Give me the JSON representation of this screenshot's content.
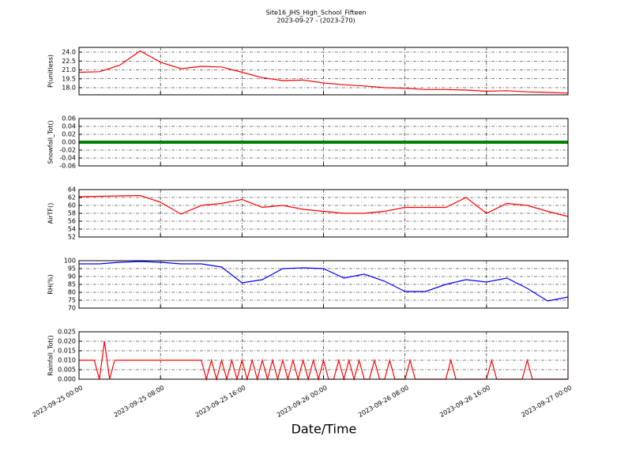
{
  "chart_data": [
    {
      "type": "line",
      "title": "Site16_JHS_High_School_Fifteen",
      "subtitle": "2023-09-27 - (2023-270)",
      "ylabel": "P(unitless)",
      "x": [
        "2023-09-25 00:00",
        "2023-09-25 02:00",
        "2023-09-25 04:00",
        "2023-09-25 06:00",
        "2023-09-25 08:00",
        "2023-09-25 10:00",
        "2023-09-25 12:00",
        "2023-09-25 14:00",
        "2023-09-25 16:00",
        "2023-09-25 18:00",
        "2023-09-25 20:00",
        "2023-09-25 22:00",
        "2023-09-26 00:00",
        "2023-09-26 02:00",
        "2023-09-26 04:00",
        "2023-09-26 06:00",
        "2023-09-26 08:00",
        "2023-09-26 10:00",
        "2023-09-26 12:00",
        "2023-09-26 14:00",
        "2023-09-26 16:00",
        "2023-09-26 18:00",
        "2023-09-26 20:00",
        "2023-09-26 22:00",
        "2023-09-27 00:00"
      ],
      "series": [
        {
          "color": "#ff0000",
          "values": [
            20.6,
            20.7,
            21.8,
            24.2,
            22.3,
            21.2,
            21.6,
            21.5,
            20.6,
            19.7,
            19.2,
            19.3,
            18.8,
            18.5,
            18.3,
            18.0,
            17.9,
            17.7,
            17.7,
            17.6,
            17.4,
            17.5,
            17.3,
            17.2,
            17.1
          ]
        }
      ],
      "xlim": [
        "2023-09-25 00:00",
        "2023-09-27 00:00"
      ],
      "xticks": [
        "2023-09-25 00:00",
        "2023-09-25 08:00",
        "2023-09-25 16:00",
        "2023-09-26 00:00",
        "2023-09-26 08:00",
        "2023-09-26 16:00",
        "2023-09-27 00:00"
      ],
      "ylim": [
        16.8,
        24.8
      ],
      "yticks": [
        {
          "value": 18,
          "label": "18.0"
        },
        19.5,
        {
          "value": 21,
          "label": "21.0"
        },
        22.5,
        {
          "value": 24,
          "label": "24.0"
        }
      ],
      "grid": true
    },
    {
      "type": "line",
      "ylabel": "Snowfall_Tot()",
      "x": [
        "2023-09-25 00:00",
        "2023-09-25 02:00",
        "2023-09-25 04:00",
        "2023-09-25 06:00",
        "2023-09-25 08:00",
        "2023-09-25 10:00",
        "2023-09-25 12:00",
        "2023-09-25 14:00",
        "2023-09-25 16:00",
        "2023-09-25 18:00",
        "2023-09-25 20:00",
        "2023-09-25 22:00",
        "2023-09-26 00:00",
        "2023-09-26 02:00",
        "2023-09-26 04:00",
        "2023-09-26 06:00",
        "2023-09-26 08:00",
        "2023-09-26 10:00",
        "2023-09-26 12:00",
        "2023-09-26 14:00",
        "2023-09-26 16:00",
        "2023-09-26 18:00",
        "2023-09-26 20:00",
        "2023-09-26 22:00",
        "2023-09-27 00:00"
      ],
      "series": [
        {
          "color": "#008000",
          "values": [
            0,
            0,
            0,
            0,
            0,
            0,
            0,
            0,
            0,
            0,
            0,
            0,
            0,
            0,
            0,
            0,
            0,
            0,
            0,
            0,
            0,
            0,
            0,
            0,
            0
          ]
        }
      ],
      "xlim": [
        "2023-09-25 00:00",
        "2023-09-27 00:00"
      ],
      "xticks": [
        "2023-09-25 00:00",
        "2023-09-25 08:00",
        "2023-09-25 16:00",
        "2023-09-26 00:00",
        "2023-09-26 08:00",
        "2023-09-26 16:00",
        "2023-09-27 00:00"
      ],
      "ylim": [
        -0.06,
        0.06
      ],
      "yticks": [
        -0.06,
        -0.04,
        -0.02,
        {
          "value": 0,
          "label": "0.00"
        },
        0.02,
        0.04,
        0.06
      ],
      "grid": true
    },
    {
      "type": "line",
      "ylabel": "AirTF()",
      "x": [
        "2023-09-25 00:00",
        "2023-09-25 02:00",
        "2023-09-25 04:00",
        "2023-09-25 06:00",
        "2023-09-25 08:00",
        "2023-09-25 10:00",
        "2023-09-25 12:00",
        "2023-09-25 14:00",
        "2023-09-25 16:00",
        "2023-09-25 18:00",
        "2023-09-25 20:00",
        "2023-09-25 22:00",
        "2023-09-26 00:00",
        "2023-09-26 02:00",
        "2023-09-26 04:00",
        "2023-09-26 06:00",
        "2023-09-26 08:00",
        "2023-09-26 10:00",
        "2023-09-26 12:00",
        "2023-09-26 14:00",
        "2023-09-26 16:00",
        "2023-09-26 18:00",
        "2023-09-26 20:00",
        "2023-09-26 22:00",
        "2023-09-27 00:00"
      ],
      "series": [
        {
          "color": "#ff0000",
          "values": [
            62.2,
            62.3,
            62.4,
            62.5,
            60.8,
            57.8,
            60.0,
            60.5,
            61.5,
            59.5,
            60.0,
            59.0,
            58.5,
            58.0,
            58.0,
            58.5,
            59.5,
            59.5,
            59.5,
            62.0,
            58.0,
            60.5,
            60.0,
            58.5,
            57.2
          ]
        }
      ],
      "xlim": [
        "2023-09-25 00:00",
        "2023-09-27 00:00"
      ],
      "xticks": [
        "2023-09-25 00:00",
        "2023-09-25 08:00",
        "2023-09-25 16:00",
        "2023-09-26 00:00",
        "2023-09-26 08:00",
        "2023-09-26 16:00",
        "2023-09-27 00:00"
      ],
      "ylim": [
        52,
        64
      ],
      "yticks": [
        52,
        54,
        56,
        58,
        60,
        62,
        64
      ],
      "grid": true
    },
    {
      "type": "line",
      "ylabel": "RH(%)",
      "x": [
        "2023-09-25 00:00",
        "2023-09-25 02:00",
        "2023-09-25 04:00",
        "2023-09-25 06:00",
        "2023-09-25 08:00",
        "2023-09-25 10:00",
        "2023-09-25 12:00",
        "2023-09-25 14:00",
        "2023-09-25 16:00",
        "2023-09-25 18:00",
        "2023-09-25 20:00",
        "2023-09-25 22:00",
        "2023-09-26 00:00",
        "2023-09-26 02:00",
        "2023-09-26 04:00",
        "2023-09-26 06:00",
        "2023-09-26 08:00",
        "2023-09-26 10:00",
        "2023-09-26 12:00",
        "2023-09-26 14:00",
        "2023-09-26 16:00",
        "2023-09-26 18:00",
        "2023-09-26 20:00",
        "2023-09-26 22:00",
        "2023-09-27 00:00"
      ],
      "series": [
        {
          "color": "#0000ff",
          "values": [
            98,
            98,
            99,
            99.5,
            99,
            98,
            98,
            96,
            86,
            88,
            95,
            95.5,
            95,
            89,
            91.5,
            87,
            80.5,
            80.5,
            85,
            88,
            86.5,
            89,
            82.5,
            74.5,
            77
          ]
        }
      ],
      "xlim": [
        "2023-09-25 00:00",
        "2023-09-27 00:00"
      ],
      "xticks": [
        "2023-09-25 00:00",
        "2023-09-25 08:00",
        "2023-09-25 16:00",
        "2023-09-26 00:00",
        "2023-09-26 08:00",
        "2023-09-26 16:00",
        "2023-09-27 00:00"
      ],
      "ylim": [
        70,
        100
      ],
      "yticks": [
        70,
        75,
        80,
        85,
        90,
        95,
        100
      ],
      "grid": true
    },
    {
      "type": "line",
      "ylabel": "Rainfall_Tot()",
      "xlabel": "Date/Time",
      "x": [
        "2023-09-25 00:00",
        "2023-09-25 00:30",
        "2023-09-25 01:00",
        "2023-09-25 01:30",
        "2023-09-25 02:00",
        "2023-09-25 02:30",
        "2023-09-25 03:00",
        "2023-09-25 03:30",
        "2023-09-25 04:00",
        "2023-09-25 04:30",
        "2023-09-25 05:00",
        "2023-09-25 05:30",
        "2023-09-25 06:00",
        "2023-09-25 06:30",
        "2023-09-25 07:00",
        "2023-09-25 07:30",
        "2023-09-25 08:00",
        "2023-09-25 08:30",
        "2023-09-25 09:00",
        "2023-09-25 09:30",
        "2023-09-25 10:00",
        "2023-09-25 10:30",
        "2023-09-25 11:00",
        "2023-09-25 11:30",
        "2023-09-25 12:00",
        "2023-09-25 12:30",
        "2023-09-25 13:00",
        "2023-09-25 13:30",
        "2023-09-25 14:00",
        "2023-09-25 14:30",
        "2023-09-25 15:00",
        "2023-09-25 15:30",
        "2023-09-25 16:00",
        "2023-09-25 16:30",
        "2023-09-25 17:00",
        "2023-09-25 17:30",
        "2023-09-25 18:00",
        "2023-09-25 18:30",
        "2023-09-25 19:00",
        "2023-09-25 19:30",
        "2023-09-25 20:00",
        "2023-09-25 20:30",
        "2023-09-25 21:00",
        "2023-09-25 21:30",
        "2023-09-25 22:00",
        "2023-09-25 22:30",
        "2023-09-25 23:00",
        "2023-09-25 23:30",
        "2023-09-26 00:00",
        "2023-09-26 00:30",
        "2023-09-26 01:00",
        "2023-09-26 01:30",
        "2023-09-26 02:00",
        "2023-09-26 02:30",
        "2023-09-26 03:00",
        "2023-09-26 03:30",
        "2023-09-26 04:00",
        "2023-09-26 04:30",
        "2023-09-26 05:00",
        "2023-09-26 05:30",
        "2023-09-26 06:00",
        "2023-09-26 06:30",
        "2023-09-26 07:00",
        "2023-09-26 07:30",
        "2023-09-26 08:00",
        "2023-09-26 08:30",
        "2023-09-26 09:00",
        "2023-09-26 09:30",
        "2023-09-26 10:00",
        "2023-09-26 10:30",
        "2023-09-26 11:00",
        "2023-09-26 11:30",
        "2023-09-26 12:00",
        "2023-09-26 12:30",
        "2023-09-26 13:00",
        "2023-09-26 13:30",
        "2023-09-26 14:00",
        "2023-09-26 14:30",
        "2023-09-26 15:00",
        "2023-09-26 15:30",
        "2023-09-26 16:00",
        "2023-09-26 16:30",
        "2023-09-26 17:00",
        "2023-09-26 17:30",
        "2023-09-26 18:00",
        "2023-09-26 18:30",
        "2023-09-26 19:00",
        "2023-09-26 19:30",
        "2023-09-26 20:00",
        "2023-09-26 20:30",
        "2023-09-26 21:00",
        "2023-09-26 21:30",
        "2023-09-26 22:00",
        "2023-09-26 22:30",
        "2023-09-26 23:00",
        "2023-09-26 23:30",
        "2023-09-27 00:00"
      ],
      "series": [
        {
          "color": "#ff0000",
          "values": [
            0.01,
            0.01,
            0.01,
            0.01,
            0,
            0.02,
            0,
            0.01,
            0.01,
            0.01,
            0.01,
            0.01,
            0.01,
            0.01,
            0.01,
            0.01,
            0.01,
            0.01,
            0.01,
            0.01,
            0.01,
            0.01,
            0.01,
            0.01,
            0.01,
            0,
            0.01,
            0,
            0.01,
            0,
            0.01,
            0,
            0.01,
            0,
            0.01,
            0,
            0.01,
            0,
            0.01,
            0,
            0.01,
            0,
            0.01,
            0,
            0.01,
            0,
            0.01,
            0,
            0.01,
            0,
            0,
            0.01,
            0,
            0.01,
            0,
            0.01,
            0,
            0,
            0.01,
            0,
            0,
            0.01,
            0,
            0,
            0,
            0.01,
            0,
            0,
            0,
            0,
            0,
            0,
            0,
            0.01,
            0,
            0,
            0,
            0,
            0,
            0,
            0,
            0.01,
            0,
            0,
            0,
            0,
            0,
            0,
            0.01,
            0,
            0,
            0,
            0,
            0,
            0,
            0,
            0
          ]
        }
      ],
      "xlim": [
        "2023-09-25 00:00",
        "2023-09-27 00:00"
      ],
      "xticks": [
        "2023-09-25 00:00",
        "2023-09-25 08:00",
        "2023-09-25 16:00",
        "2023-09-26 00:00",
        "2023-09-26 08:00",
        "2023-09-26 16:00",
        "2023-09-27 00:00"
      ],
      "ylim": [
        0,
        0.025
      ],
      "yticks": [
        {
          "value": 0,
          "label": "0.000"
        },
        {
          "value": 0.005,
          "label": "0.005"
        },
        {
          "value": 0.01,
          "label": "0.010"
        },
        {
          "value": 0.015,
          "label": "0.015"
        },
        {
          "value": 0.02,
          "label": "0.020"
        },
        {
          "value": 0.025,
          "label": "0.025"
        }
      ],
      "grid": true
    }
  ]
}
